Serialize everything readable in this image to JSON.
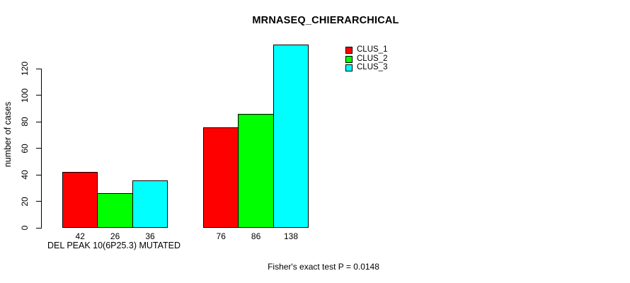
{
  "chart_data": {
    "type": "bar",
    "title": "MRNASEQ_CHIERARCHICAL",
    "xlabel": "DEL PEAK 10(6P25.3) MUTATED",
    "ylabel": "number of cases",
    "ylim": [
      0,
      140
    ],
    "yticks": [
      0,
      20,
      40,
      60,
      80,
      100,
      120
    ],
    "grid": false,
    "legend_position": "top-right",
    "bar_value_labels_shown": true,
    "categories": [
      "DEL PEAK 10(6P25.3) MUTATED",
      ""
    ],
    "series": [
      {
        "name": "CLUS_1",
        "color": "#ff0000",
        "values": [
          42,
          76
        ]
      },
      {
        "name": "CLUS_2",
        "color": "#00ff00",
        "values": [
          26,
          86
        ]
      },
      {
        "name": "CLUS_3",
        "color": "#00ffff",
        "values": [
          36,
          138
        ]
      }
    ],
    "annotation": "Fisher's exact test P = 0.0148"
  }
}
